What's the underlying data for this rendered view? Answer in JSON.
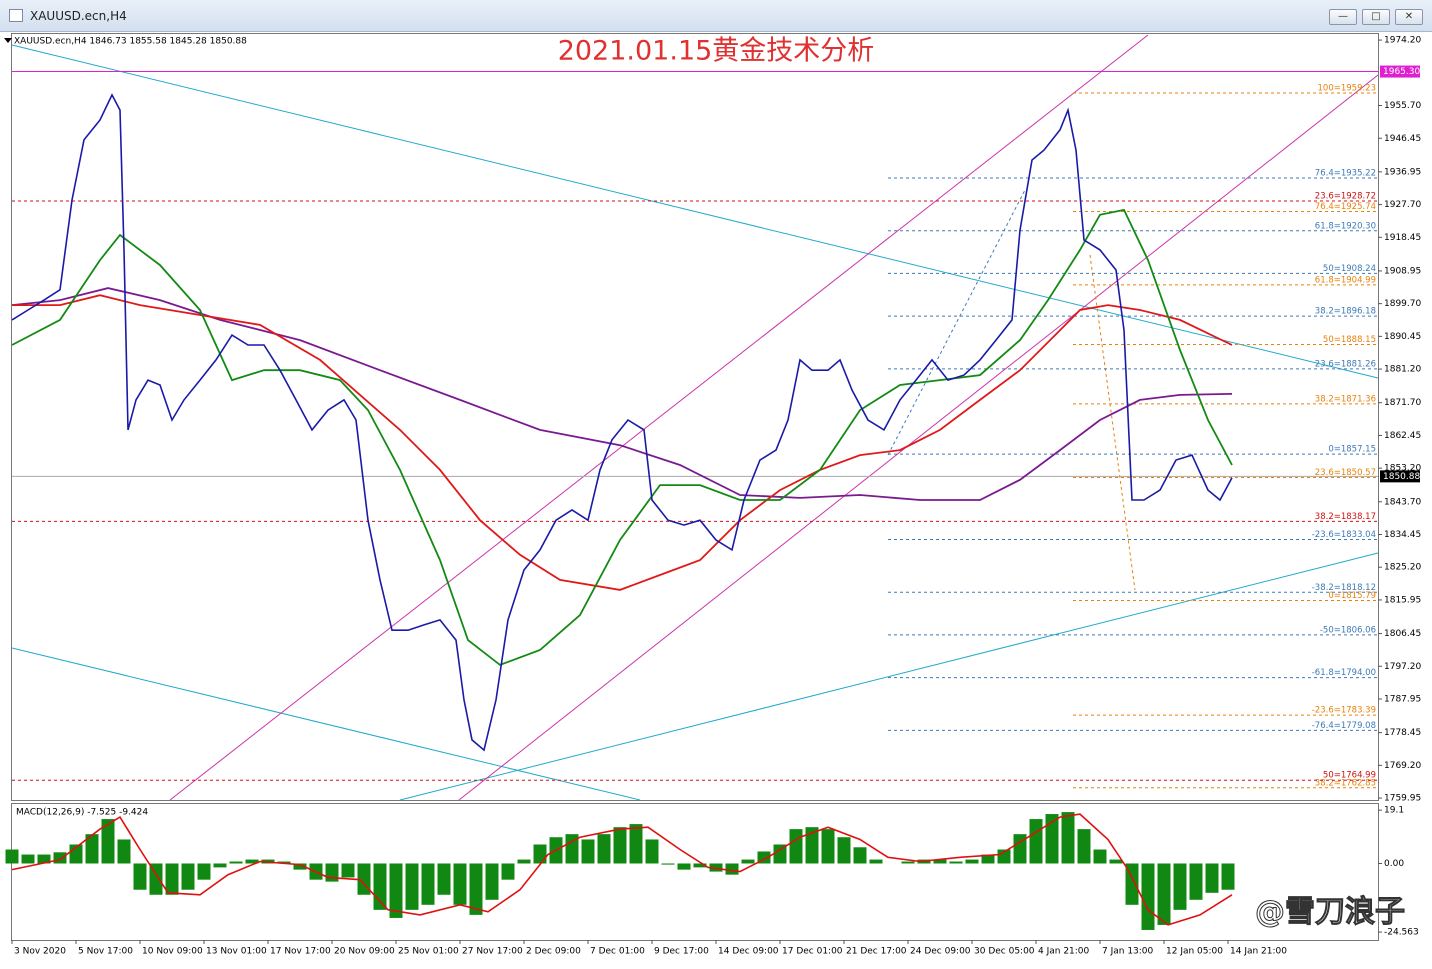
{
  "window": {
    "title": "XAUUSD.ecn,H4"
  },
  "chart_data": [
    {
      "type": "line",
      "title": "2021.01.15黄金技术分析",
      "info": "XAUUSD.ecn,H4  1846.73 1855.58 1845.28 1850.88",
      "xlim": [
        0,
        341.5
      ],
      "xticks": [
        {
          "value": 0,
          "label": "3 Nov 2020"
        },
        {
          "value": 16,
          "label": "5 Nov 17:00"
        },
        {
          "value": 32,
          "label": "10 Nov 09:00"
        },
        {
          "value": 48,
          "label": "13 Nov 01:00"
        },
        {
          "value": 64,
          "label": "17 Nov 17:00"
        },
        {
          "value": 80,
          "label": "20 Nov 09:00"
        },
        {
          "value": 96,
          "label": "25 Nov 01:00"
        },
        {
          "value": 112,
          "label": "27 Nov 17:00"
        },
        {
          "value": 128,
          "label": "2 Dec 09:00"
        },
        {
          "value": 144,
          "label": "7 Dec 01:00"
        },
        {
          "value": 160,
          "label": "9 Dec 17:00"
        },
        {
          "value": 176,
          "label": "14 Dec 09:00"
        },
        {
          "value": 192,
          "label": "17 Dec 01:00"
        },
        {
          "value": 208,
          "label": "21 Dec 17:00"
        },
        {
          "value": 224,
          "label": "24 Dec 09:00"
        },
        {
          "value": 240,
          "label": "30 Dec 05:00"
        },
        {
          "value": 256,
          "label": "4 Jan 21:00"
        },
        {
          "value": 272,
          "label": "7 Jan 13:00"
        },
        {
          "value": 288,
          "label": "12 Jan 05:00"
        },
        {
          "value": 304,
          "label": "14 Jan 21:00"
        }
      ],
      "ylim": [
        1759.4,
        1976.2
      ],
      "yticks": [
        {
          "value": 1974.2,
          "label": "1974.20"
        },
        {
          "value": 1955.7,
          "label": "1955.70"
        },
        {
          "value": 1946.45,
          "label": "1946.45"
        },
        {
          "value": 1936.95,
          "label": "1936.95"
        },
        {
          "value": 1927.7,
          "label": "1927.70"
        },
        {
          "value": 1918.45,
          "label": "1918.45"
        },
        {
          "value": 1908.95,
          "label": "1908.95"
        },
        {
          "value": 1899.7,
          "label": "1899.70"
        },
        {
          "value": 1890.45,
          "label": "1890.45"
        },
        {
          "value": 1881.2,
          "label": "1881.20"
        },
        {
          "value": 1871.7,
          "label": "1871.70"
        },
        {
          "value": 1862.45,
          "label": "1862.45"
        },
        {
          "value": 1853.2,
          "label": "1853.20"
        },
        {
          "value": 1843.7,
          "label": "1843.70"
        },
        {
          "value": 1834.45,
          "label": "1834.45"
        },
        {
          "value": 1825.2,
          "label": "1825.20"
        },
        {
          "value": 1815.95,
          "label": "1815.95"
        },
        {
          "value": 1806.45,
          "label": "1806.45"
        },
        {
          "value": 1797.2,
          "label": "1797.20"
        },
        {
          "value": 1787.95,
          "label": "1787.95"
        },
        {
          "value": 1778.45,
          "label": "1778.45"
        },
        {
          "value": 1769.2,
          "label": "1769.20"
        },
        {
          "value": 1759.95,
          "label": "1759.95"
        }
      ],
      "series": [
        {
          "color": "#1a1aa8",
          "x": [
            0,
            4,
            8,
            12,
            15,
            18,
            22,
            25,
            27,
            28,
            29,
            31,
            34,
            37,
            40,
            43,
            47,
            51,
            55,
            59,
            63,
            67,
            71,
            75,
            79,
            83,
            86,
            89,
            92,
            95,
            99,
            103,
            107,
            111,
            113,
            115,
            118,
            121,
            124,
            128,
            132,
            136,
            140,
            144,
            147,
            150,
            154,
            158,
            160,
            164,
            168,
            172,
            176,
            180,
            183,
            187,
            191,
            194,
            197,
            200,
            204,
            207,
            210,
            214,
            218,
            222,
            226,
            230,
            234,
            238,
            242,
            246,
            250,
            252,
            255,
            258,
            262,
            264,
            266,
            268,
            272,
            276,
            278,
            280,
            283,
            287,
            291,
            295,
            299,
            302,
            305
          ],
          "values": [
            1895.1,
            1897.9,
            1900.7,
            1903.6,
            1929.0,
            1946.0,
            1951.6,
            1958.7,
            1954.4,
            1914.9,
            1864.0,
            1872.5,
            1878.1,
            1876.7,
            1866.8,
            1872.5,
            1878.1,
            1883.8,
            1890.8,
            1888.0,
            1888.0,
            1880.9,
            1872.5,
            1864.0,
            1869.6,
            1872.5,
            1866.8,
            1838.5,
            1821.6,
            1807.4,
            1807.4,
            1808.9,
            1810.3,
            1804.6,
            1787.7,
            1776.4,
            1773.5,
            1787.7,
            1810.3,
            1824.4,
            1830.1,
            1838.5,
            1841.4,
            1838.5,
            1852.7,
            1861.2,
            1866.8,
            1864.0,
            1844.2,
            1838.5,
            1837.1,
            1838.5,
            1832.9,
            1830.1,
            1844.2,
            1855.5,
            1858.3,
            1866.8,
            1883.8,
            1880.9,
            1880.9,
            1883.8,
            1875.3,
            1866.8,
            1864.0,
            1872.5,
            1878.1,
            1883.8,
            1878.1,
            1879.5,
            1883.8,
            1889.4,
            1895.1,
            1920.5,
            1940.3,
            1943.1,
            1948.8,
            1954.4,
            1943.1,
            1917.7,
            1914.9,
            1909.2,
            1892.2,
            1844.2,
            1844.2,
            1847.0,
            1855.5,
            1856.9,
            1847.0,
            1844.2,
            1850.5
          ]
        },
        {
          "color": "#138a13",
          "x": [
            0,
            12,
            22,
            27,
            37,
            47,
            55,
            63,
            72,
            82,
            89,
            97,
            107,
            114,
            122,
            132,
            142,
            152,
            162,
            172,
            182,
            192,
            202,
            212,
            222,
            232,
            242,
            252,
            259,
            267,
            272,
            278,
            284,
            292,
            299,
            305
          ],
          "values": [
            1888.0,
            1895.1,
            1912.0,
            1919.1,
            1910.6,
            1897.9,
            1878.1,
            1880.9,
            1880.9,
            1878.1,
            1869.6,
            1852.7,
            1827.2,
            1804.6,
            1797.6,
            1801.8,
            1811.7,
            1832.9,
            1848.4,
            1848.4,
            1844.2,
            1844.2,
            1852.7,
            1869.6,
            1876.7,
            1878.1,
            1879.5,
            1889.4,
            1900.7,
            1914.9,
            1924.8,
            1926.2,
            1912.0,
            1886.6,
            1866.8,
            1854.1
          ]
        },
        {
          "color": "#e01818",
          "x": [
            0,
            12,
            22,
            32,
            47,
            62,
            77,
            87,
            97,
            107,
            117,
            127,
            137,
            152,
            162,
            172,
            182,
            192,
            202,
            212,
            222,
            232,
            242,
            252,
            262,
            267,
            274,
            282,
            292,
            305
          ],
          "values": [
            1899.3,
            1899.3,
            1902.1,
            1899.3,
            1896.5,
            1893.7,
            1883.8,
            1873.9,
            1864.0,
            1852.7,
            1838.5,
            1828.7,
            1821.6,
            1818.8,
            1823.0,
            1827.2,
            1838.5,
            1847.0,
            1852.7,
            1856.9,
            1858.3,
            1864.0,
            1872.5,
            1880.9,
            1892.2,
            1897.9,
            1899.3,
            1897.9,
            1895.1,
            1888.0
          ]
        },
        {
          "color": "#7a1a90",
          "x": [
            0,
            12,
            24,
            37,
            52,
            72,
            92,
            112,
            132,
            152,
            167,
            182,
            197,
            212,
            227,
            242,
            252,
            262,
            272,
            282,
            292,
            305
          ],
          "values": [
            1899.3,
            1900.7,
            1904.1,
            1900.7,
            1895.1,
            1889.4,
            1880.9,
            1872.5,
            1864.0,
            1859.7,
            1854.1,
            1845.6,
            1844.8,
            1845.6,
            1844.2,
            1844.2,
            1849.9,
            1858.3,
            1866.8,
            1872.5,
            1873.9,
            1874.2
          ]
        }
      ],
      "fib_sets": [
        {
          "color": "#3d7ab8",
          "levels": [
            {
              "label": "76.4=1935.22",
              "value": 1935.22
            },
            {
              "label": "61.8=1920.30",
              "value": 1920.3
            },
            {
              "label": "50=1908.24",
              "value": 1908.24
            },
            {
              "label": "38.2=1896.18",
              "value": 1896.18
            },
            {
              "label": "23.6=1881.26",
              "value": 1881.26
            },
            {
              "label": "0=1857.15",
              "value": 1857.15
            },
            {
              "label": "-23.6=1833.04",
              "value": 1833.04
            },
            {
              "label": "-38.2=1818.12",
              "value": 1818.12
            },
            {
              "label": "-50=1806.06",
              "value": 1806.06
            },
            {
              "label": "-61.8=1794.00",
              "value": 1794.0
            },
            {
              "label": "-76.4=1779.08",
              "value": 1779.08
            }
          ]
        },
        {
          "color": "#e8820c",
          "levels": [
            {
              "label": "100=1959.23",
              "value": 1959.23
            },
            {
              "label": "76.4=1925.74",
              "value": 1925.74
            },
            {
              "label": "61.8=1904.99",
              "value": 1904.99
            },
            {
              "label": "50=1888.15",
              "value": 1888.15
            },
            {
              "label": "38.2=1871.36",
              "value": 1871.36
            },
            {
              "label": "23.6=1850.57",
              "value": 1850.57
            },
            {
              "label": "0=1815.79",
              "value": 1815.79
            },
            {
              "label": "-23.6=1783.39",
              "value": 1783.39
            },
            {
              "label": "38.2=1762.85",
              "value": 1762.85
            }
          ]
        },
        {
          "color": "#d01010",
          "levels": [
            {
              "label": "23.6=1928.72",
              "value": 1928.72
            },
            {
              "label": "38.2=1838.17",
              "value": 1838.17
            },
            {
              "label": "50=1764.99",
              "value": 1764.99
            }
          ]
        }
      ],
      "price_lines": [
        {
          "label": "1965.30",
          "value": 1965.3,
          "color": "#e020d0"
        },
        {
          "label": "1850.88",
          "value": 1850.88,
          "color": "#000000"
        }
      ]
    },
    {
      "type": "macd",
      "title": "MACD(12,26,9) -7.525 -9.424",
      "color": "#118811",
      "x": [
        0,
        4,
        8,
        12,
        16,
        20,
        24,
        28,
        32,
        36,
        40,
        44,
        48,
        52,
        56,
        60,
        64,
        68,
        72,
        76,
        80,
        84,
        88,
        92,
        96,
        100,
        104,
        108,
        112,
        116,
        120,
        124,
        128,
        132,
        136,
        140,
        144,
        148,
        152,
        156,
        160,
        164,
        168,
        172,
        176,
        180,
        184,
        188,
        192,
        196,
        200,
        204,
        208,
        212,
        216,
        220,
        224,
        228,
        232,
        236,
        240,
        244,
        248,
        252,
        256,
        260,
        264,
        268,
        272,
        276,
        280,
        284,
        288,
        292,
        296,
        300,
        304
      ],
      "values": [
        5.0,
        3.2,
        3.2,
        4.0,
        6.8,
        10.5,
        15.9,
        8.6,
        -9.4,
        -11.2,
        -11.2,
        -9.4,
        -5.8,
        -1.4,
        0.7,
        1.4,
        1.4,
        0.7,
        -2.2,
        -5.8,
        -6.5,
        -5.0,
        -11.2,
        -16.6,
        -19.5,
        -16.6,
        -14.8,
        -11.2,
        -14.8,
        -18.4,
        -13.0,
        -5.8,
        1.4,
        6.8,
        9.4,
        10.5,
        8.6,
        10.5,
        13.0,
        14.1,
        8.6,
        -0.4,
        -2.2,
        -1.4,
        -2.9,
        -4.0,
        1.4,
        4.3,
        6.8,
        12.3,
        13.0,
        12.3,
        9.4,
        5.8,
        1.4,
        0,
        0.7,
        1.4,
        1.4,
        0.7,
        1.4,
        3.2,
        5.0,
        10.5,
        15.9,
        17.7,
        18.4,
        12.3,
        5.0,
        1.4,
        -14.8,
        -23.8,
        -22.0,
        -16.6,
        -13.0,
        -10.5,
        -9.4
      ],
      "signal": {
        "color": "#e01010",
        "x": [
          0,
          12,
          22,
          27,
          32,
          39,
          47,
          54,
          62,
          72,
          79,
          87,
          94,
          102,
          112,
          119,
          127,
          134,
          142,
          152,
          159,
          167,
          174,
          182,
          189,
          197,
          204,
          212,
          219,
          227,
          237,
          247,
          254,
          262,
          267,
          274,
          279,
          284,
          289,
          297,
          305
        ],
        "values": [
          -2.2,
          1.4,
          12.3,
          16.6,
          5.0,
          -10.5,
          -11.2,
          -4.0,
          0.7,
          -0.4,
          -5.0,
          -5.8,
          -16.6,
          -18.4,
          -14.8,
          -17.3,
          -9.4,
          3.2,
          9.4,
          12.3,
          13.0,
          5.0,
          -1.4,
          -2.9,
          2.2,
          9.4,
          13.0,
          8.6,
          2.2,
          0.7,
          2.2,
          3.2,
          9.4,
          16.6,
          17.7,
          8.6,
          -2.2,
          -16.6,
          -22.0,
          -18.4,
          -11.2
        ]
      },
      "ylim": [
        -27.4,
        21.3
      ],
      "yticks": [
        19.1,
        {
          "value": 0,
          "label": "0.00"
        },
        -24.563
      ]
    }
  ],
  "watermark": "@雪刀浪子"
}
